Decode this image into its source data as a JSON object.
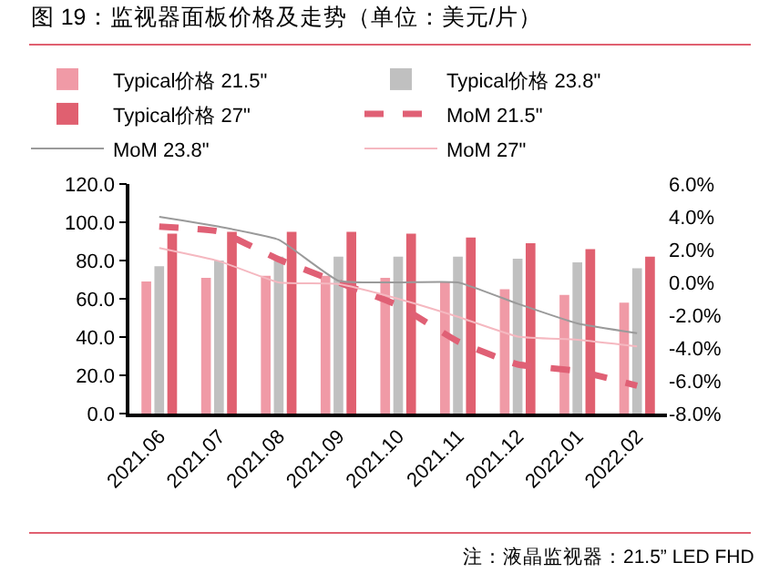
{
  "chart_data": {
    "type": "bar",
    "title": "图 19：监视器面板价格及走势（单位：美元/片）",
    "categories": [
      "2021.06",
      "2021.07",
      "2021.08",
      "2021.09",
      "2021.10",
      "2021.11",
      "2021.12",
      "2022.01",
      "2022.02"
    ],
    "series": [
      {
        "name": "Typical价格 21.5\"",
        "color": "#f09aa6",
        "values": [
          69,
          71,
          72,
          72,
          71,
          69,
          65,
          62,
          58
        ]
      },
      {
        "name": "Typical价格 23.8\"",
        "color": "#c0c0c0",
        "values": [
          77,
          80,
          82,
          82,
          82,
          82,
          81,
          79,
          76
        ]
      },
      {
        "name": "Typical价格 27\"",
        "color": "#e06070",
        "values": [
          94,
          95,
          95,
          95,
          94,
          92,
          89,
          86,
          82
        ]
      },
      {
        "name": "MoM 21.5\"",
        "type": "line",
        "axis": "y2",
        "line_style": "dashed",
        "color": "#e06075",
        "values": [
          3.4,
          3.1,
          1.4,
          0,
          -1.4,
          -3.6,
          -5.0,
          -5.4,
          -6.3
        ]
      },
      {
        "name": "MoM 23.8\"",
        "type": "line",
        "axis": "y2",
        "line_style": "solid",
        "color": "#9a9a9a",
        "values": [
          4.0,
          3.4,
          2.6,
          0.1,
          0,
          0,
          -1.3,
          -2.5,
          -3.1
        ]
      },
      {
        "name": "MoM 27\"",
        "type": "line",
        "axis": "y2",
        "line_style": "solid",
        "color": "#f5b8c0",
        "values": [
          2.1,
          1.3,
          0,
          -0.1,
          -1.0,
          -2.1,
          -3.3,
          -3.5,
          -3.9
        ]
      }
    ],
    "ylim": [
      0,
      120
    ],
    "yticks": [
      {
        "value": 0,
        "label": "0.0"
      },
      {
        "value": 20,
        "label": "20.0"
      },
      {
        "value": 40,
        "label": "40.0"
      },
      {
        "value": 60,
        "label": "60.0"
      },
      {
        "value": 80,
        "label": "80.0"
      },
      {
        "value": 100,
        "label": "100.0"
      },
      {
        "value": 120,
        "label": "120.0"
      }
    ],
    "y2lim": [
      -8,
      6
    ],
    "y2ticks": [
      {
        "value": -8,
        "label": "-8.0%"
      },
      {
        "value": -6,
        "label": "-6.0%"
      },
      {
        "value": -4,
        "label": "-4.0%"
      },
      {
        "value": -2,
        "label": "-2.0%"
      },
      {
        "value": 0,
        "label": "0.0%"
      },
      {
        "value": 2,
        "label": "2.0%"
      },
      {
        "value": 4,
        "label": "4.0%"
      },
      {
        "value": 6,
        "label": "6.0%"
      }
    ],
    "annotations": [
      "注：液晶监视器：21.5” LED FHD"
    ],
    "legend": "top",
    "grid": false,
    "marker": "none"
  }
}
